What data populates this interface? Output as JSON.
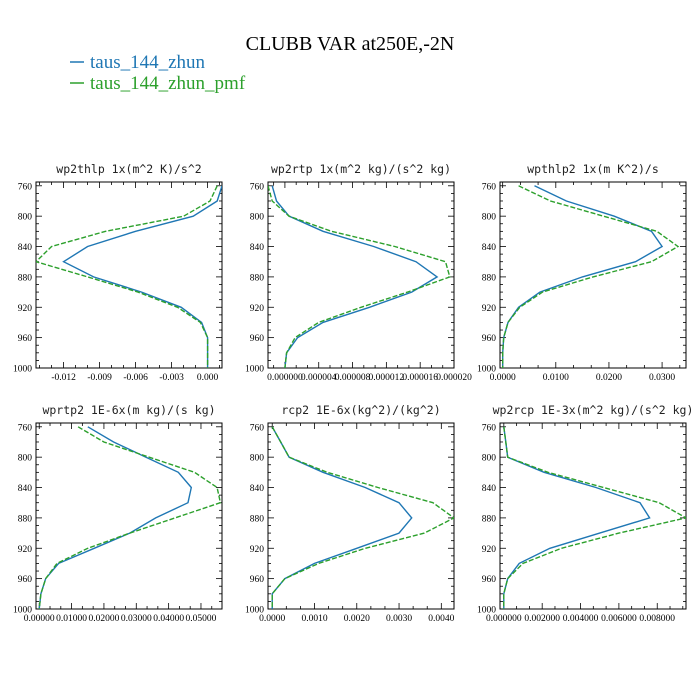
{
  "title": "CLUBB VAR at250E,-2N",
  "legend": [
    {
      "label": "taus_144_zhun",
      "color": "#1f77b4"
    },
    {
      "label": "taus_144_zhun_pmf",
      "color": "#2ca02c"
    }
  ],
  "chart_data": [
    {
      "type": "line",
      "title": "wp2thlp  1x(m^2 K)/s^2",
      "y": [
        760,
        780,
        800,
        820,
        840,
        860,
        880,
        900,
        920,
        940,
        960,
        980,
        1000
      ],
      "ylim": [
        1000,
        755
      ],
      "yticks": [
        760,
        800,
        840,
        880,
        920,
        960,
        1000
      ],
      "xlim": [
        -0.0143,
        0.0012
      ],
      "xticks": [
        -0.012,
        -0.009,
        -0.006,
        -0.003,
        0.0
      ],
      "xticklabels": [
        "-0.012",
        "-0.009",
        "-0.006",
        "-0.003",
        "0.000"
      ],
      "series": [
        {
          "name": "taus_144_zhun",
          "color": "#1f77b4",
          "dashed": false,
          "values": [
            0.0012,
            0.0008,
            -0.0012,
            -0.006,
            -0.01,
            -0.012,
            -0.0095,
            -0.0055,
            -0.0022,
            -0.0005,
            0.0,
            0.0,
            0.0
          ]
        },
        {
          "name": "taus_144_zhun_pmf",
          "color": "#2ca02c",
          "dashed": true,
          "values": [
            0.0008,
            0.0002,
            -0.002,
            -0.0085,
            -0.013,
            -0.0143,
            -0.01,
            -0.0058,
            -0.0025,
            -0.0006,
            0.0,
            0.0,
            0.0
          ]
        }
      ]
    },
    {
      "type": "line",
      "title": "wp2rtp  1x(m^2 kg)/(s^2 kg)",
      "y": [
        760,
        780,
        800,
        820,
        840,
        860,
        880,
        900,
        920,
        940,
        960,
        980,
        1000
      ],
      "ylim": [
        1000,
        755
      ],
      "yticks": [
        760,
        800,
        840,
        880,
        920,
        960,
        1000
      ],
      "xlim": [
        -2e-06,
        2e-05
      ],
      "xticks": [
        0.0,
        4e-06,
        8e-06,
        1.2e-05,
        1.6e-05,
        2e-05
      ],
      "xticklabels": [
        "0.000000",
        "0.000004",
        "0.000008",
        "0.000012",
        "0.000016",
        "0.000020"
      ],
      "series": [
        {
          "name": "taus_144_zhun",
          "color": "#1f77b4",
          "dashed": false,
          "values": [
            -1.5e-06,
            -1e-06,
            5e-07,
            4.5e-06,
            1.05e-05,
            1.55e-05,
            1.8e-05,
            1.5e-05,
            1e-05,
            4.5e-06,
            1.5e-06,
            2e-07,
            0.0
          ]
        },
        {
          "name": "taus_144_zhun_pmf",
          "color": "#2ca02c",
          "dashed": true,
          "values": [
            -2e-06,
            -1.5e-06,
            5e-07,
            5.5e-06,
            1.3e-05,
            1.9e-05,
            1.95e-05,
            1.45e-05,
            9e-06,
            4e-06,
            1.2e-06,
            2e-07,
            0.0
          ]
        }
      ]
    },
    {
      "type": "line",
      "title": "wpthlp2  1x(m K^2)/s",
      "y": [
        760,
        780,
        800,
        820,
        840,
        860,
        880,
        900,
        920,
        940,
        960,
        980,
        1000
      ],
      "ylim": [
        1000,
        755
      ],
      "yticks": [
        760,
        800,
        840,
        880,
        920,
        960,
        1000
      ],
      "xlim": [
        -0.0005,
        0.0345
      ],
      "xticks": [
        0.0,
        0.01,
        0.02,
        0.03
      ],
      "xticklabels": [
        "0.0000",
        "0.0100",
        "0.0200",
        "0.0300"
      ],
      "series": [
        {
          "name": "taus_144_zhun",
          "color": "#1f77b4",
          "dashed": false,
          "values": [
            0.006,
            0.012,
            0.021,
            0.028,
            0.03,
            0.025,
            0.015,
            0.007,
            0.003,
            0.001,
            0.0002,
            0.0,
            0.0
          ]
        },
        {
          "name": "taus_144_zhun_pmf",
          "color": "#2ca02c",
          "dashed": true,
          "values": [
            0.003,
            0.009,
            0.019,
            0.029,
            0.033,
            0.028,
            0.017,
            0.0075,
            0.0032,
            0.001,
            0.0002,
            0.0,
            0.0
          ]
        }
      ]
    },
    {
      "type": "line",
      "title": "wprtp2  1E-6x(m kg)/(s kg)",
      "y": [
        760,
        780,
        800,
        820,
        840,
        860,
        880,
        900,
        920,
        940,
        960,
        980,
        1000
      ],
      "ylim": [
        1000,
        755
      ],
      "yticks": [
        760,
        800,
        840,
        880,
        920,
        960,
        1000
      ],
      "xlim": [
        -0.001,
        0.0565
      ],
      "xticks": [
        0.0,
        0.01,
        0.02,
        0.03,
        0.04,
        0.05
      ],
      "xticklabels": [
        "0.00000",
        "0.01000",
        "0.02000",
        "0.03000",
        "0.04000",
        "0.05000"
      ],
      "series": [
        {
          "name": "taus_144_zhun",
          "color": "#1f77b4",
          "dashed": false,
          "values": [
            0.015,
            0.023,
            0.033,
            0.043,
            0.047,
            0.046,
            0.036,
            0.028,
            0.017,
            0.006,
            0.002,
            0.0005,
            0.0
          ]
        },
        {
          "name": "taus_144_zhun_pmf",
          "color": "#2ca02c",
          "dashed": true,
          "values": [
            0.012,
            0.02,
            0.034,
            0.048,
            0.055,
            0.056,
            0.042,
            0.028,
            0.015,
            0.0055,
            0.002,
            0.0005,
            0.0
          ]
        }
      ]
    },
    {
      "type": "line",
      "title": "rcp2  1E-6x(kg^2)/(kg^2)",
      "y": [
        760,
        780,
        800,
        820,
        840,
        860,
        880,
        900,
        920,
        940,
        960,
        980,
        1000
      ],
      "ylim": [
        1000,
        755
      ],
      "yticks": [
        760,
        800,
        840,
        880,
        920,
        960,
        1000
      ],
      "xlim": [
        -0.0001,
        0.0043
      ],
      "xticks": [
        0.0,
        0.001,
        0.002,
        0.003,
        0.004
      ],
      "xticklabels": [
        "0.0000",
        "0.0010",
        "0.0020",
        "0.0030",
        "0.0040"
      ],
      "series": [
        {
          "name": "taus_144_zhun",
          "color": "#1f77b4",
          "dashed": false,
          "values": [
            0.0,
            0.0002,
            0.0004,
            0.0012,
            0.0022,
            0.003,
            0.0033,
            0.003,
            0.002,
            0.001,
            0.0003,
            0.0,
            0.0
          ]
        },
        {
          "name": "taus_144_zhun_pmf",
          "color": "#2ca02c",
          "dashed": true,
          "values": [
            0.0,
            0.0002,
            0.0004,
            0.0013,
            0.0025,
            0.0038,
            0.0043,
            0.0036,
            0.0022,
            0.0011,
            0.0003,
            0.0,
            0.0
          ]
        }
      ]
    },
    {
      "type": "line",
      "title": "wp2rcp  1E-3x(m^2 kg)/(s^2 kg)",
      "y": [
        760,
        780,
        800,
        820,
        840,
        860,
        880,
        900,
        920,
        940,
        960,
        980,
        1000
      ],
      "ylim": [
        1000,
        755
      ],
      "yticks": [
        760,
        800,
        840,
        880,
        920,
        960,
        1000
      ],
      "xlim": [
        -0.0002,
        0.0095
      ],
      "xticks": [
        0.0,
        0.002,
        0.004,
        0.006,
        0.008
      ],
      "xticklabels": [
        "0.000000",
        "0.002000",
        "0.004000",
        "0.006000",
        "0.008000"
      ],
      "series": [
        {
          "name": "taus_144_zhun",
          "color": "#1f77b4",
          "dashed": false,
          "values": [
            0.0,
            0.0001,
            0.0002,
            0.0021,
            0.0048,
            0.0071,
            0.0076,
            0.005,
            0.0024,
            0.0008,
            0.0002,
            0.0,
            0.0
          ]
        },
        {
          "name": "taus_144_zhun_pmf",
          "color": "#2ca02c",
          "dashed": true,
          "values": [
            0.0,
            0.0001,
            0.0002,
            0.0023,
            0.0052,
            0.0081,
            0.0095,
            0.006,
            0.003,
            0.001,
            0.0002,
            0.0,
            0.0
          ]
        }
      ]
    }
  ]
}
